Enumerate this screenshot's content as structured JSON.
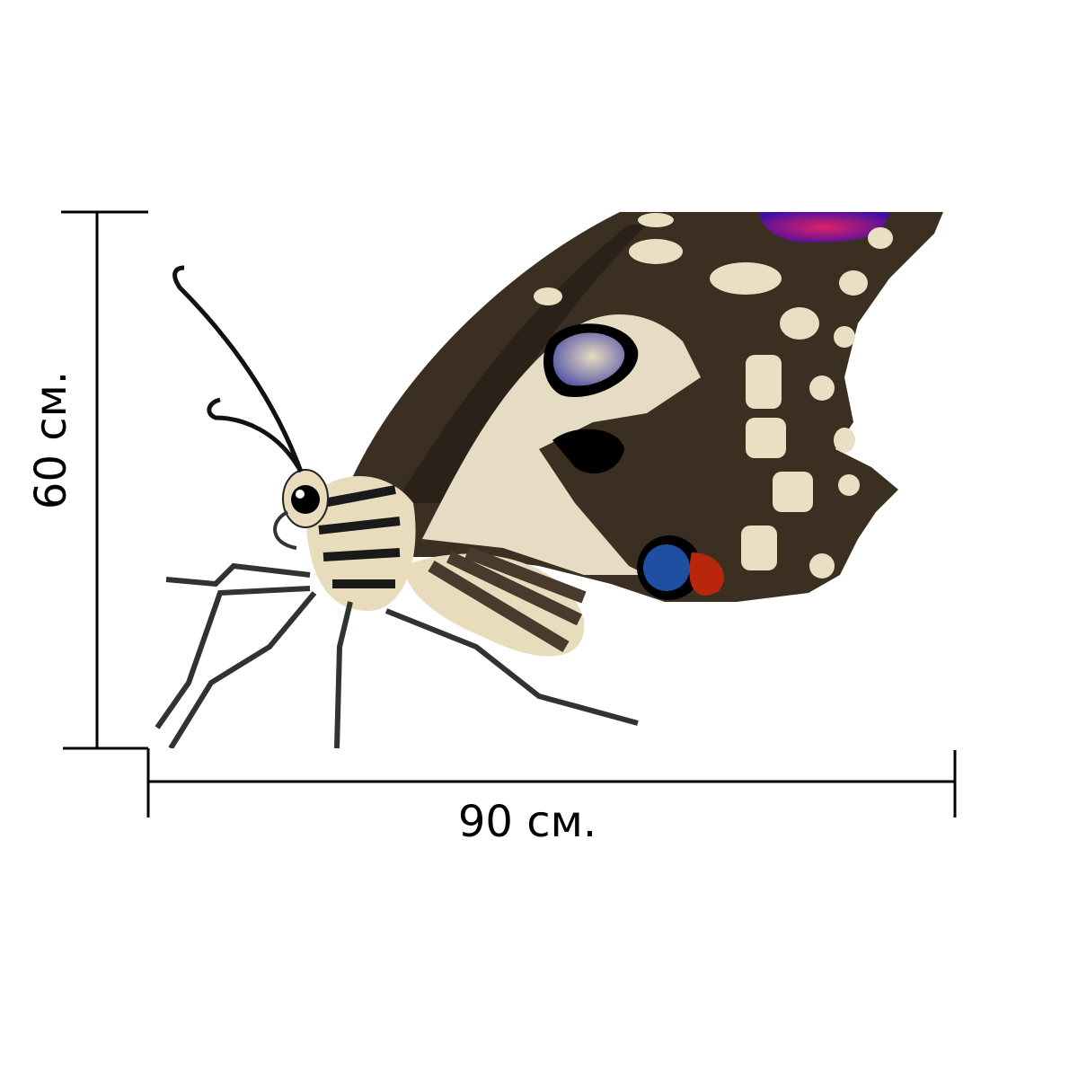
{
  "dimensions": {
    "height": "60 см.",
    "width": "90 см."
  }
}
